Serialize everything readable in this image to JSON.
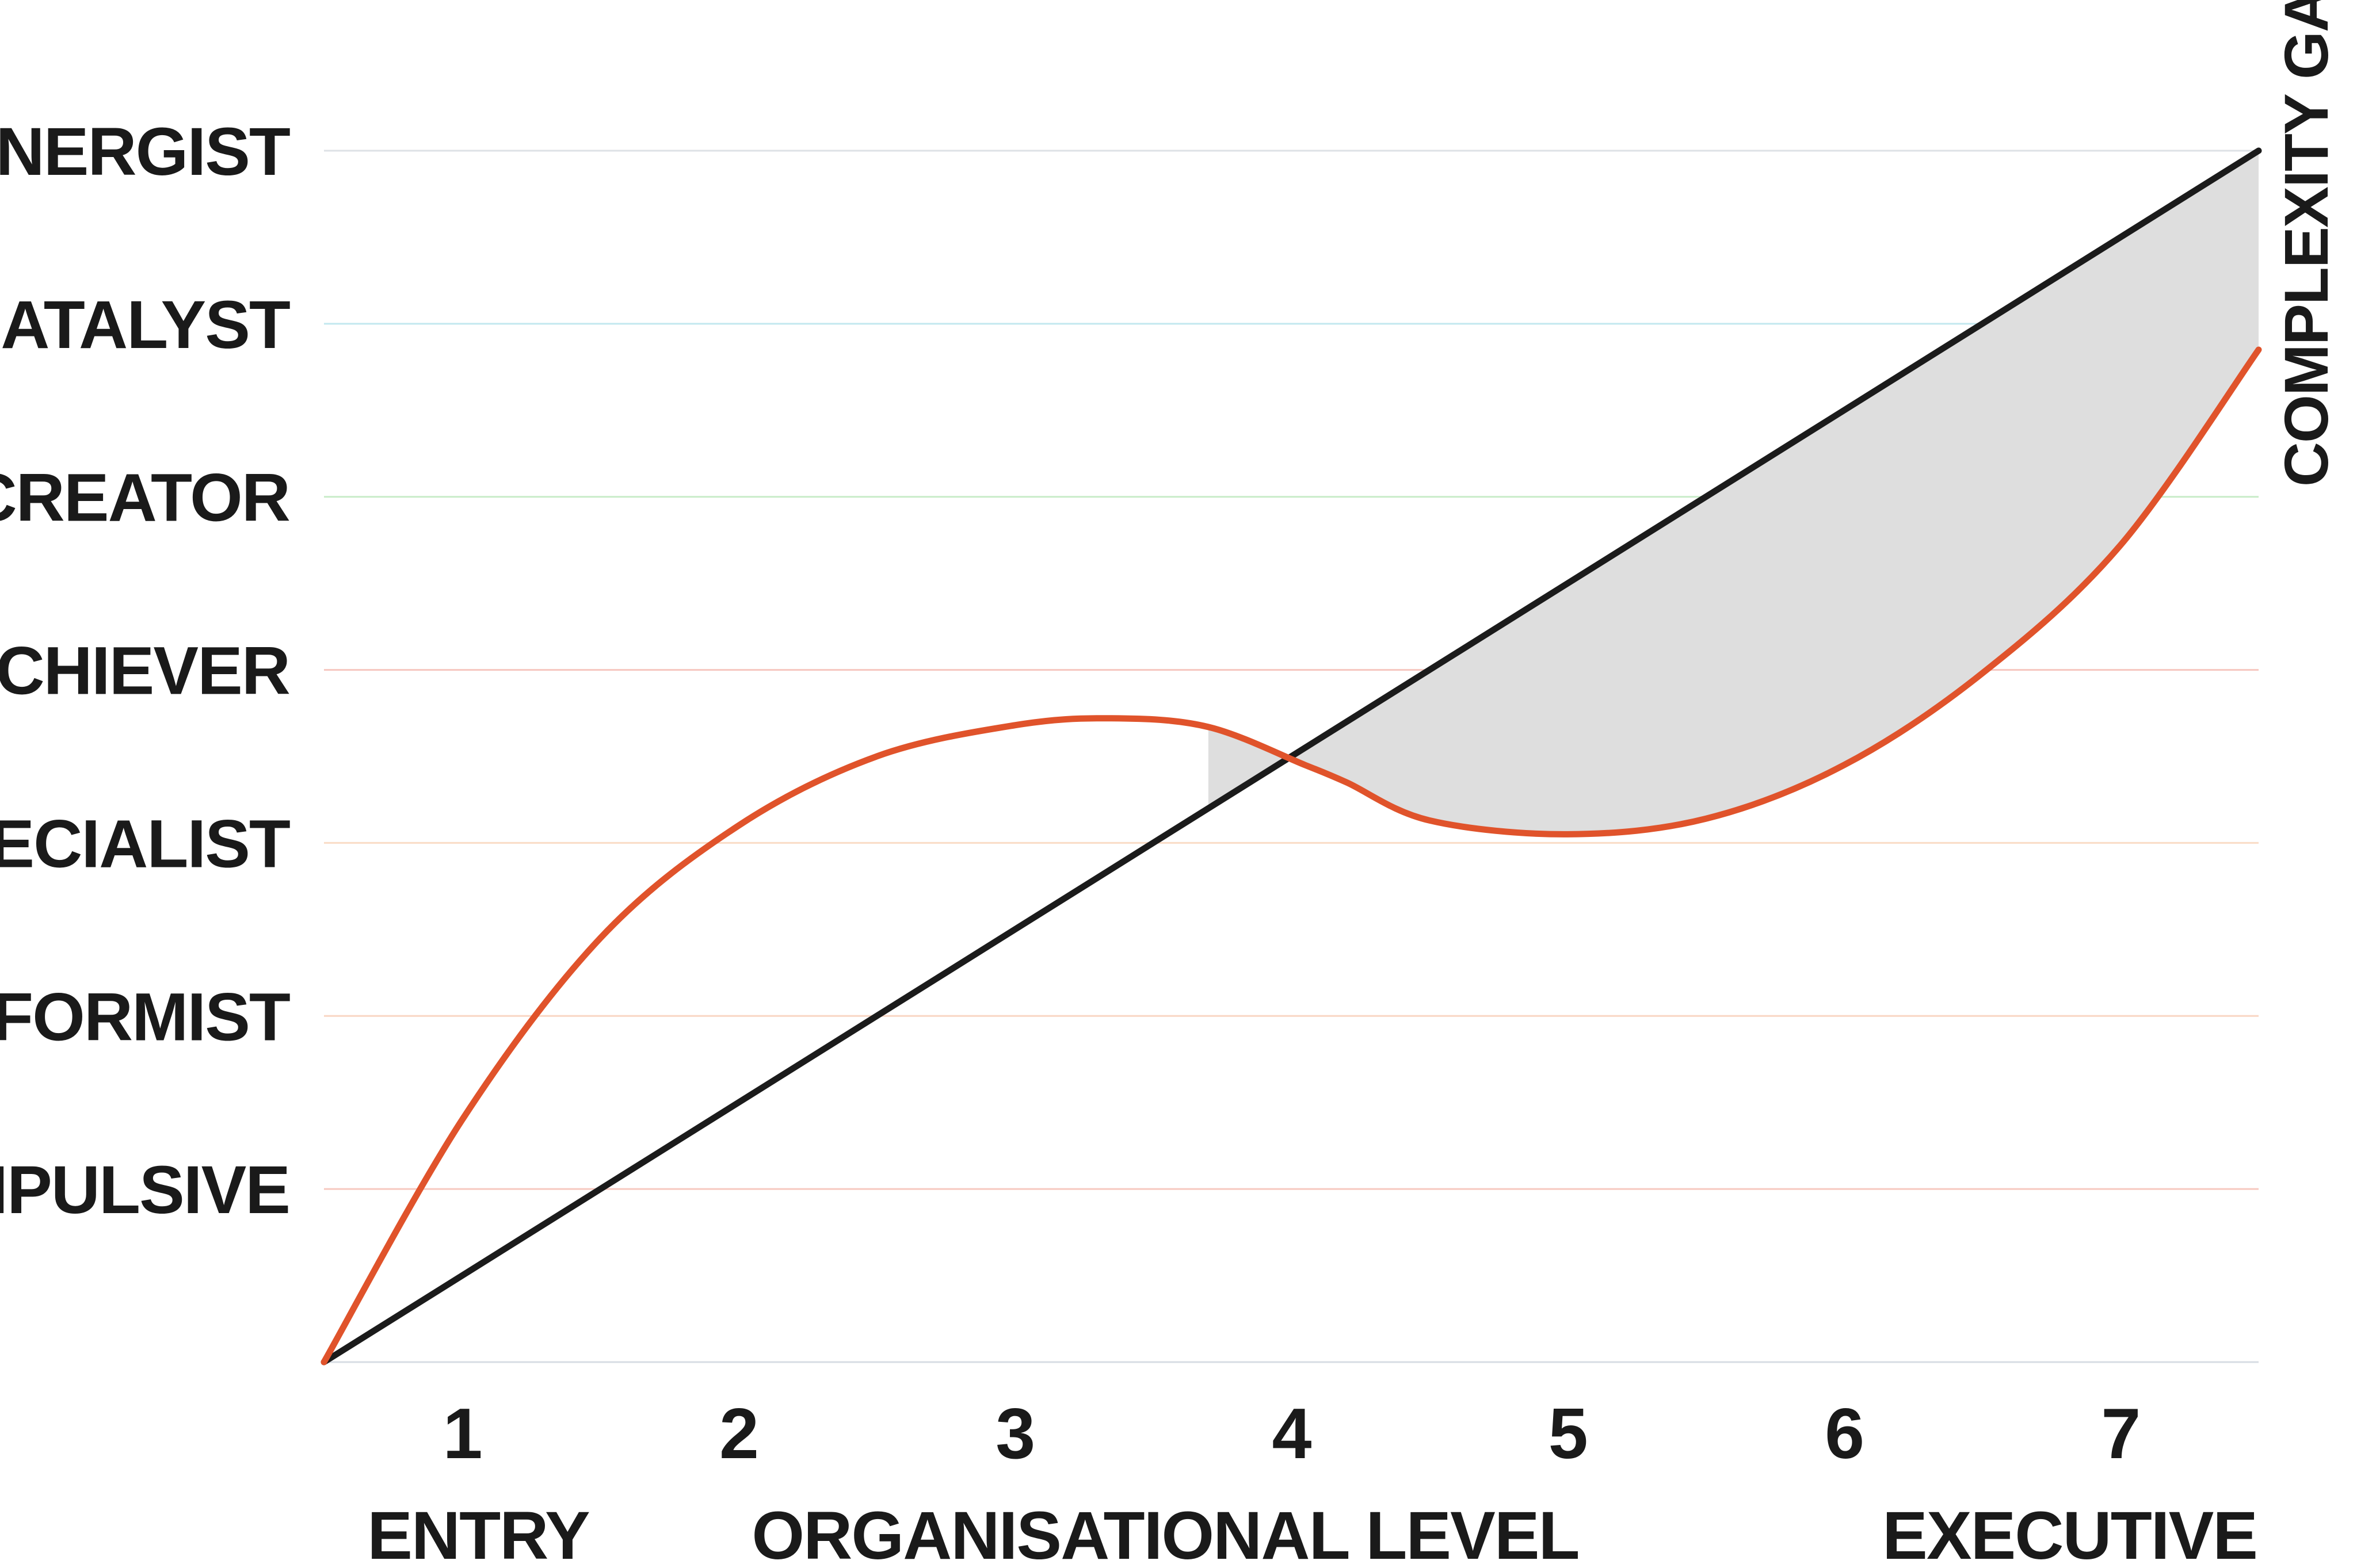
{
  "chart_data": {
    "type": "line",
    "title": "",
    "xlabel": "ORGANISATIONAL LEVEL",
    "x_start_label": "ENTRY",
    "x_end_label": "EXECUTIVE",
    "x_ticks": [
      "1",
      "2",
      "3",
      "4",
      "5",
      "6",
      "7"
    ],
    "xlim": [
      0.5,
      7.5
    ],
    "y_levels": [
      {
        "label": "IMPULSIVE",
        "color": "#f6c9c0"
      },
      {
        "label": "CONFORMIST",
        "color": "#f9d6c4"
      },
      {
        "label": "SPECIALIST",
        "color": "#fadcc6"
      },
      {
        "label": "ACHIEVER",
        "color": "#f6c6bf"
      },
      {
        "label": "CO-CREATOR",
        "color": "#c9ecc9"
      },
      {
        "label": "CATALYST",
        "color": "#c3e8ef"
      },
      {
        "label": "SYNERGIST",
        "color": "#dde1e6"
      }
    ],
    "ylim": [
      0,
      7
    ],
    "grid": true,
    "annotation": "COMPLEXITY GAP",
    "gap_fill_color": "#dedede",
    "series": [
      {
        "color": "#1b1b1b",
        "x": [
          0.5,
          7.5
        ],
        "y": [
          0,
          7
        ]
      },
      {
        "color": "#e0532b",
        "x": [
          0.5,
          1.0,
          1.5,
          2.0,
          2.5,
          3.0,
          3.35,
          3.7,
          4.05,
          4.2,
          4.5,
          5.0,
          5.5,
          6.0,
          6.5,
          7.0,
          7.5
        ],
        "y": [
          0,
          1.4,
          2.45,
          3.1,
          3.5,
          3.68,
          3.72,
          3.67,
          3.45,
          3.35,
          3.13,
          3.05,
          3.14,
          3.45,
          3.98,
          4.72,
          5.85
        ]
      }
    ]
  }
}
